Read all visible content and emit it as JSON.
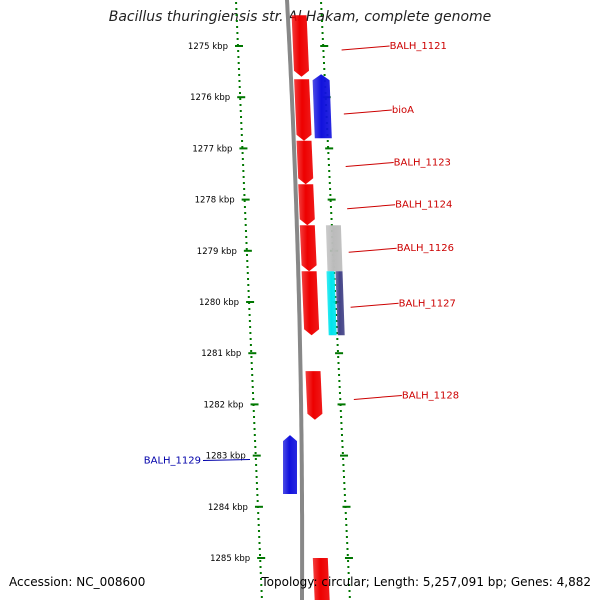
{
  "title": "Bacillus thuringiensis str. Al Hakam, complete genome",
  "footer": {
    "accession": "Accession: NC_008600",
    "topology": "Topology: circular; Length: 5,257,091 bp; Genes: 4,882"
  },
  "colors": {
    "forward_gene": "#ee0000",
    "reverse_gene": "#1111dd",
    "pseudo_gene": "#bbbbbb",
    "cyan_feature": "#00e5ee",
    "navy_feature": "#444488",
    "backbone": "#888888",
    "tick_green": "#007700",
    "label_red": "#cc0000",
    "label_blue": "#0000aa"
  },
  "axis": {
    "start_kbp": 1274.6,
    "end_kbp": 1285.9,
    "ticks": [
      {
        "kbp": 1275,
        "label": "1275 kbp"
      },
      {
        "kbp": 1276,
        "label": "1276 kbp"
      },
      {
        "kbp": 1277,
        "label": "1277 kbp"
      },
      {
        "kbp": 1278,
        "label": "1278 kbp"
      },
      {
        "kbp": 1279,
        "label": "1279 kbp"
      },
      {
        "kbp": 1280,
        "label": "1280 kbp"
      },
      {
        "kbp": 1281,
        "label": "1281 kbp"
      },
      {
        "kbp": 1282,
        "label": "1282 kbp"
      },
      {
        "kbp": 1283,
        "label": "1283 kbp"
      },
      {
        "kbp": 1284,
        "label": "1284 kbp"
      },
      {
        "kbp": 1285,
        "label": "1285 kbp"
      }
    ]
  },
  "genes": [
    {
      "name": "BALH_1121",
      "strand": "+",
      "start_kbp": 1274.4,
      "end_kbp": 1275.6,
      "type": "gene",
      "label_side": "right"
    },
    {
      "name": "bioA",
      "strand": "+",
      "start_kbp": 1275.65,
      "end_kbp": 1276.85,
      "type": "gene",
      "label_side": "right"
    },
    {
      "name": "",
      "strand": "-",
      "start_kbp": 1275.55,
      "end_kbp": 1276.8,
      "type": "gene",
      "label_side": "none"
    },
    {
      "name": "BALH_1123",
      "strand": "+",
      "start_kbp": 1276.85,
      "end_kbp": 1277.7,
      "type": "gene",
      "label_side": "right"
    },
    {
      "name": "BALH_1124",
      "strand": "+",
      "start_kbp": 1277.7,
      "end_kbp": 1278.5,
      "type": "gene",
      "label_side": "right"
    },
    {
      "name": "BALH_1126",
      "strand": "+",
      "start_kbp": 1278.5,
      "end_kbp": 1279.4,
      "type": "gene",
      "label_side": "right"
    },
    {
      "name": "",
      "strand": "+",
      "start_kbp": 1278.5,
      "end_kbp": 1279.4,
      "type": "pseudo",
      "label_side": "none"
    },
    {
      "name": "BALH_1127",
      "strand": "+",
      "start_kbp": 1279.4,
      "end_kbp": 1280.65,
      "type": "gene",
      "label_side": "right"
    },
    {
      "name": "",
      "strand": "+",
      "start_kbp": 1279.4,
      "end_kbp": 1280.65,
      "type": "cyan",
      "label_side": "none"
    },
    {
      "name": "",
      "strand": "+",
      "start_kbp": 1279.4,
      "end_kbp": 1280.65,
      "type": "navy",
      "label_side": "none"
    },
    {
      "name": "BALH_1128",
      "strand": "+",
      "start_kbp": 1281.35,
      "end_kbp": 1282.3,
      "type": "gene",
      "label_side": "right"
    },
    {
      "name": "BALH_1129",
      "strand": "-",
      "start_kbp": 1282.6,
      "end_kbp": 1283.75,
      "type": "gene",
      "label_side": "left"
    },
    {
      "name": "",
      "strand": "+",
      "start_kbp": 1285.0,
      "end_kbp": 1286.0,
      "type": "gene",
      "label_side": "none"
    }
  ]
}
